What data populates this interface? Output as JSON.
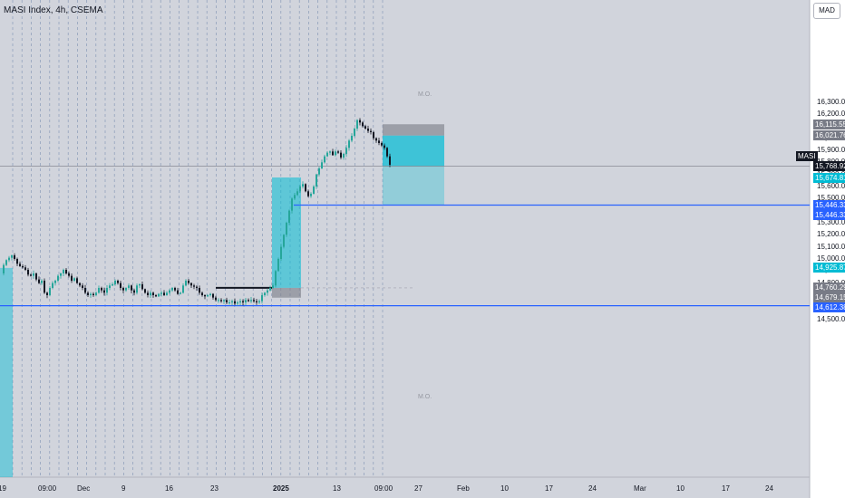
{
  "legend": {
    "title": "MASI Index, 4h, CSEMA"
  },
  "currency": "MAD",
  "symbol": "MASI",
  "colors": {
    "up": "#26a69a",
    "down": "#131722",
    "teal": "#00bcd4",
    "blue": "#2962ff",
    "grid": "#8a9bb8",
    "zone": "#787b86"
  },
  "chart_data": {
    "type": "candlestick",
    "y_axis": {
      "min": 14400,
      "max": 16400,
      "label_min": 14500,
      "label_max": 16300,
      "step": 100,
      "tick_labels": [
        "14,500.00",
        "14,600.00",
        "14,700.00",
        "14,800.00",
        "14,900.00",
        "15,000.00",
        "15,100.00",
        "15,200.00",
        "15,300.00",
        "15,400.00",
        "15,500.00",
        "15,600.00",
        "15,700.00",
        "15,800.00",
        "15,900.00",
        "16,000.00",
        "16,100.00",
        "16,200.00",
        "16,300.00"
      ]
    },
    "x_axis": {
      "labels": [
        "19",
        "09:00",
        "Dec",
        "9",
        "16",
        "23",
        "2025",
        "13",
        "09:00",
        "27",
        "Feb",
        "10",
        "17",
        "24",
        "Mar",
        "10",
        "17",
        "24"
      ]
    },
    "price_tags": [
      {
        "value": 16115.55,
        "text": "16,115.55",
        "style": "gray"
      },
      {
        "value": 16021.76,
        "text": "16,021.76",
        "style": "gray"
      },
      {
        "value": 15768.92,
        "text": "15,768.92",
        "style": "dark"
      },
      {
        "value": 15674.81,
        "text": "15,674.81",
        "style": "teal"
      },
      {
        "value": 15446.33,
        "text": "15,446.33",
        "style": "blue"
      },
      {
        "value": 15446.33,
        "text": "15,446.33",
        "style": "blue"
      },
      {
        "value": 14925.87,
        "text": "14,925.87",
        "style": "teal"
      },
      {
        "value": 14760.29,
        "text": "14,760.29",
        "style": "gray"
      },
      {
        "value": 14679.15,
        "text": "14,679.15",
        "style": "gray"
      },
      {
        "value": 14612.38,
        "text": "14,612.38",
        "style": "blue"
      }
    ],
    "current_price": 15768.92,
    "levels": [
      {
        "name": "upper-support",
        "value": 15446.33
      },
      {
        "name": "lower-support",
        "value": 14612.38
      }
    ],
    "zones": [
      {
        "name": "upper-order-block",
        "from": 16021.76,
        "to": 16115.55,
        "label": "M.O."
      },
      {
        "name": "lower-order-block",
        "from": 14679.15,
        "to": 14760.29,
        "label": "M.O."
      }
    ],
    "close_path": [
      [
        0,
        14880
      ],
      [
        3,
        14950
      ],
      [
        6,
        14990
      ],
      [
        9,
        15010
      ],
      [
        12,
        15030
      ],
      [
        15,
        15000
      ],
      [
        18,
        14960
      ],
      [
        21,
        14940
      ],
      [
        24,
        14930
      ],
      [
        27,
        14910
      ],
      [
        30,
        14870
      ],
      [
        33,
        14860
      ],
      [
        36,
        14880
      ],
      [
        39,
        14830
      ],
      [
        42,
        14800
      ],
      [
        45,
        14820
      ],
      [
        48,
        14720
      ],
      [
        51,
        14700
      ],
      [
        54,
        14760
      ],
      [
        57,
        14800
      ],
      [
        60,
        14820
      ],
      [
        63,
        14860
      ],
      [
        66,
        14880
      ],
      [
        69,
        14910
      ],
      [
        72,
        14880
      ],
      [
        75,
        14860
      ],
      [
        78,
        14820
      ],
      [
        81,
        14840
      ],
      [
        84,
        14800
      ],
      [
        87,
        14780
      ],
      [
        90,
        14760
      ],
      [
        93,
        14720
      ],
      [
        96,
        14700
      ],
      [
        99,
        14710
      ],
      [
        102,
        14700
      ],
      [
        105,
        14720
      ],
      [
        108,
        14760
      ],
      [
        111,
        14740
      ],
      [
        114,
        14720
      ],
      [
        117,
        14760
      ],
      [
        120,
        14780
      ],
      [
        123,
        14790
      ],
      [
        126,
        14820
      ],
      [
        129,
        14800
      ],
      [
        132,
        14760
      ],
      [
        135,
        14740
      ],
      [
        138,
        14760
      ],
      [
        141,
        14780
      ],
      [
        144,
        14740
      ],
      [
        147,
        14720
      ],
      [
        150,
        14780
      ],
      [
        153,
        14790
      ],
      [
        156,
        14750
      ],
      [
        159,
        14720
      ],
      [
        162,
        14700
      ],
      [
        165,
        14720
      ],
      [
        168,
        14700
      ],
      [
        171,
        14690
      ],
      [
        174,
        14710
      ],
      [
        177,
        14720
      ],
      [
        180,
        14700
      ],
      [
        183,
        14720
      ],
      [
        186,
        14740
      ],
      [
        189,
        14760
      ],
      [
        192,
        14740
      ],
      [
        195,
        14710
      ],
      [
        198,
        14720
      ],
      [
        201,
        14780
      ],
      [
        204,
        14820
      ],
      [
        207,
        14800
      ],
      [
        210,
        14780
      ],
      [
        213,
        14770
      ],
      [
        216,
        14760
      ],
      [
        219,
        14720
      ],
      [
        222,
        14700
      ],
      [
        225,
        14690
      ],
      [
        228,
        14700
      ],
      [
        231,
        14710
      ],
      [
        234,
        14680
      ],
      [
        237,
        14660
      ],
      [
        240,
        14660
      ],
      [
        243,
        14650
      ],
      [
        246,
        14660
      ],
      [
        249,
        14640
      ],
      [
        252,
        14640
      ],
      [
        255,
        14650
      ],
      [
        258,
        14630
      ],
      [
        261,
        14640
      ],
      [
        264,
        14650
      ],
      [
        267,
        14640
      ],
      [
        270,
        14660
      ],
      [
        273,
        14650
      ],
      [
        276,
        14660
      ],
      [
        279,
        14650
      ],
      [
        282,
        14640
      ],
      [
        285,
        14650
      ],
      [
        288,
        14700
      ],
      [
        291,
        14720
      ],
      [
        294,
        14740
      ],
      [
        297,
        14760
      ],
      [
        300,
        14780
      ],
      [
        303,
        14900
      ],
      [
        306,
        15000
      ],
      [
        309,
        15100
      ],
      [
        312,
        15200
      ],
      [
        315,
        15300
      ],
      [
        318,
        15400
      ],
      [
        321,
        15500
      ],
      [
        324,
        15530
      ],
      [
        327,
        15560
      ],
      [
        330,
        15600
      ],
      [
        333,
        15620
      ],
      [
        336,
        15560
      ],
      [
        339,
        15520
      ],
      [
        342,
        15540
      ],
      [
        345,
        15600
      ],
      [
        348,
        15700
      ],
      [
        351,
        15750
      ],
      [
        354,
        15800
      ],
      [
        357,
        15850
      ],
      [
        360,
        15880
      ],
      [
        363,
        15890
      ],
      [
        366,
        15860
      ],
      [
        369,
        15890
      ],
      [
        372,
        15880
      ],
      [
        375,
        15840
      ],
      [
        378,
        15870
      ],
      [
        381,
        15920
      ],
      [
        384,
        15980
      ],
      [
        387,
        16020
      ],
      [
        390,
        16080
      ],
      [
        393,
        16150
      ],
      [
        396,
        16130
      ],
      [
        399,
        16100
      ],
      [
        402,
        16080
      ],
      [
        405,
        16060
      ],
      [
        408,
        16050
      ],
      [
        411,
        16000
      ],
      [
        414,
        15980
      ],
      [
        417,
        15960
      ],
      [
        420,
        15940
      ],
      [
        423,
        15920
      ],
      [
        426,
        15850
      ],
      [
        429,
        15780
      ]
    ]
  }
}
